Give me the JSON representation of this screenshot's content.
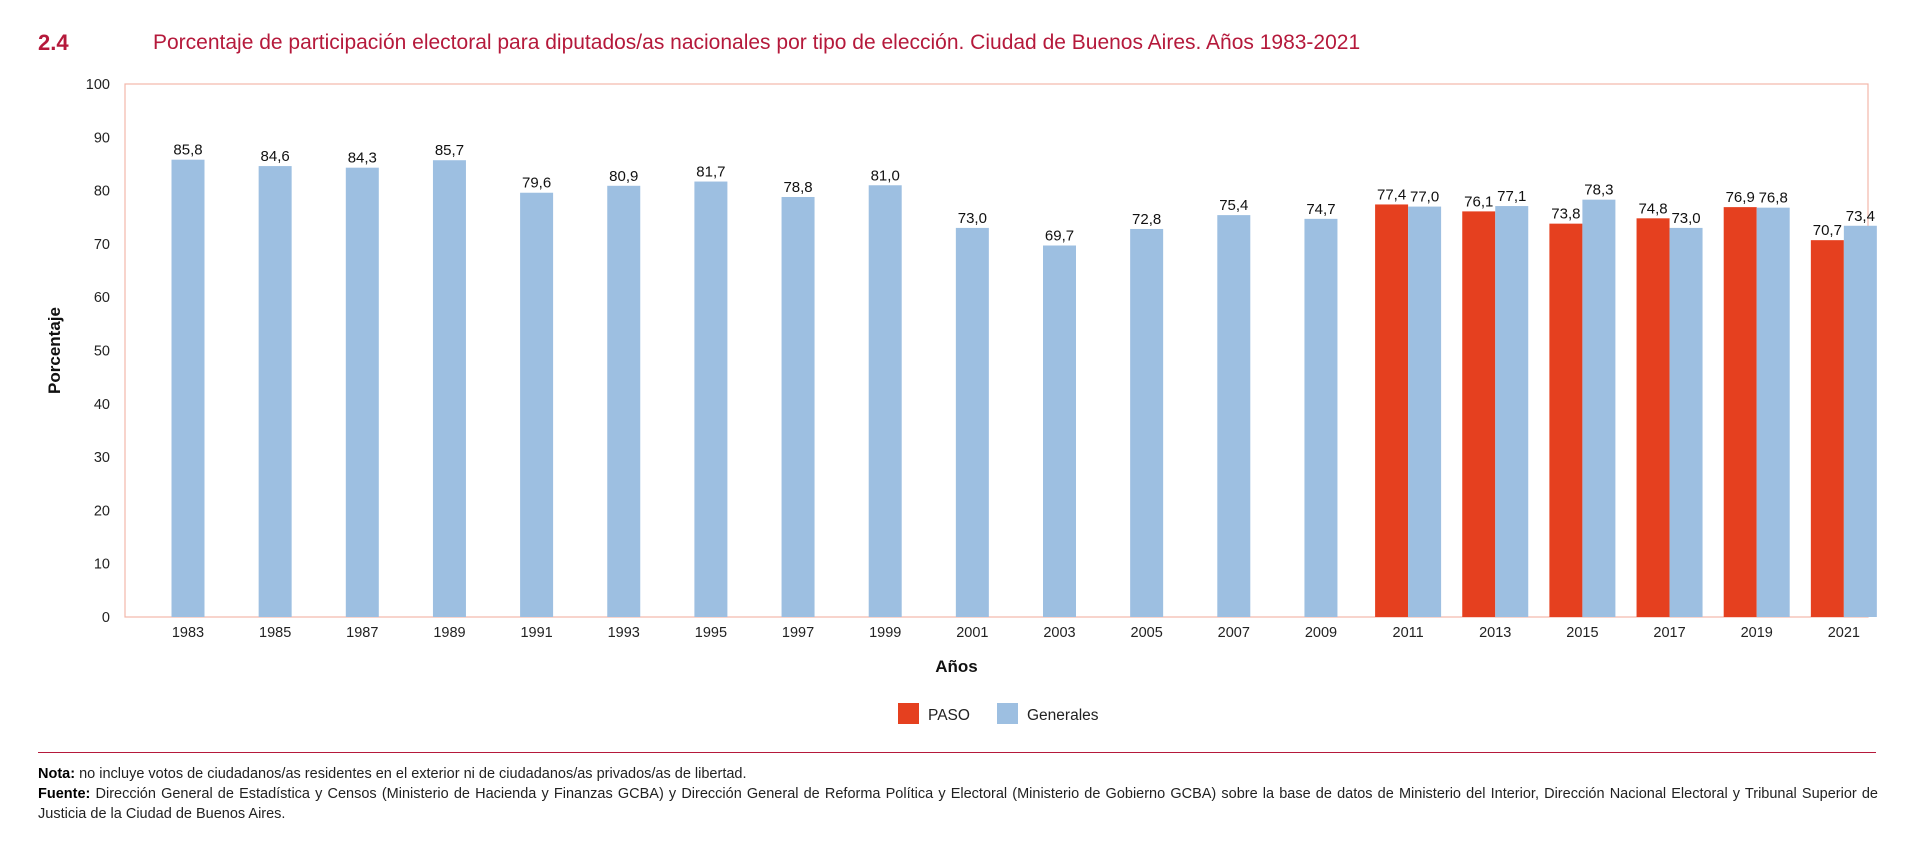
{
  "figure": {
    "number": "2.4",
    "title": "Porcentaje de participación electoral para diputados/as nacionales por tipo de elección. Ciudad de Buenos Aires. Años 1983-2021"
  },
  "colors": {
    "accent": "#b5193b",
    "paso": "#e5401f",
    "generales": "#9dbfe1",
    "plot_border": "#f2b7aa"
  },
  "chart_data": {
    "type": "bar",
    "title": "Porcentaje de participación electoral para diputados/as nacionales por tipo de elección. Ciudad de Buenos Aires. Años 1983-2021",
    "xlabel": "Años",
    "ylabel": "Porcentaje",
    "ylim": [
      0,
      100
    ],
    "yticks": [
      0,
      10,
      20,
      30,
      40,
      50,
      60,
      70,
      80,
      90,
      100
    ],
    "grid": false,
    "legend_position": "bottom-center",
    "categories": [
      "1983",
      "1985",
      "1987",
      "1989",
      "1991",
      "1993",
      "1995",
      "1997",
      "1999",
      "2001",
      "2003",
      "2005",
      "2007",
      "2009",
      "2011",
      "2013",
      "2015",
      "2017",
      "2019",
      "2021"
    ],
    "series": [
      {
        "name": "PASO",
        "color": "#e5401f",
        "values": [
          null,
          null,
          null,
          null,
          null,
          null,
          null,
          null,
          null,
          null,
          null,
          null,
          null,
          null,
          77.4,
          76.1,
          73.8,
          74.8,
          76.9,
          70.7
        ],
        "labels": [
          null,
          null,
          null,
          null,
          null,
          null,
          null,
          null,
          null,
          null,
          null,
          null,
          null,
          null,
          "77,4",
          "76,1",
          "73,8",
          "74,8",
          "76,9",
          "70,7"
        ]
      },
      {
        "name": "Generales",
        "color": "#9dbfe1",
        "values": [
          85.8,
          84.6,
          84.3,
          85.7,
          79.6,
          80.9,
          81.7,
          78.8,
          81.0,
          73.0,
          69.7,
          72.8,
          75.4,
          74.7,
          77.0,
          77.1,
          78.3,
          73.0,
          76.8,
          73.4
        ],
        "labels": [
          "85,8",
          "84,6",
          "84,3",
          "85,7",
          "79,6",
          "80,9",
          "81,7",
          "78,8",
          "81,0",
          "73,0",
          "69,7",
          "72,8",
          "75,4",
          "74,7",
          "77,0",
          "77,1",
          "78,3",
          "73,0",
          "76,8",
          "73,4"
        ]
      }
    ]
  },
  "notes": {
    "nota_label": "Nota:",
    "nota_text": "no incluye votos de ciudadanos/as residentes en el exterior ni de ciudadanos/as privados/as de libertad.",
    "fuente_label": "Fuente:",
    "fuente_text": "Dirección General de Estadística y Censos (Ministerio de Hacienda y Finanzas GCBA) y Dirección General de Reforma Política y Electoral (Ministerio de Gobierno GCBA) sobre la base de datos de Ministerio del Interior, Dirección Nacional Electoral y Tribunal Superior de Justicia de la Ciudad de Buenos Aires."
  }
}
